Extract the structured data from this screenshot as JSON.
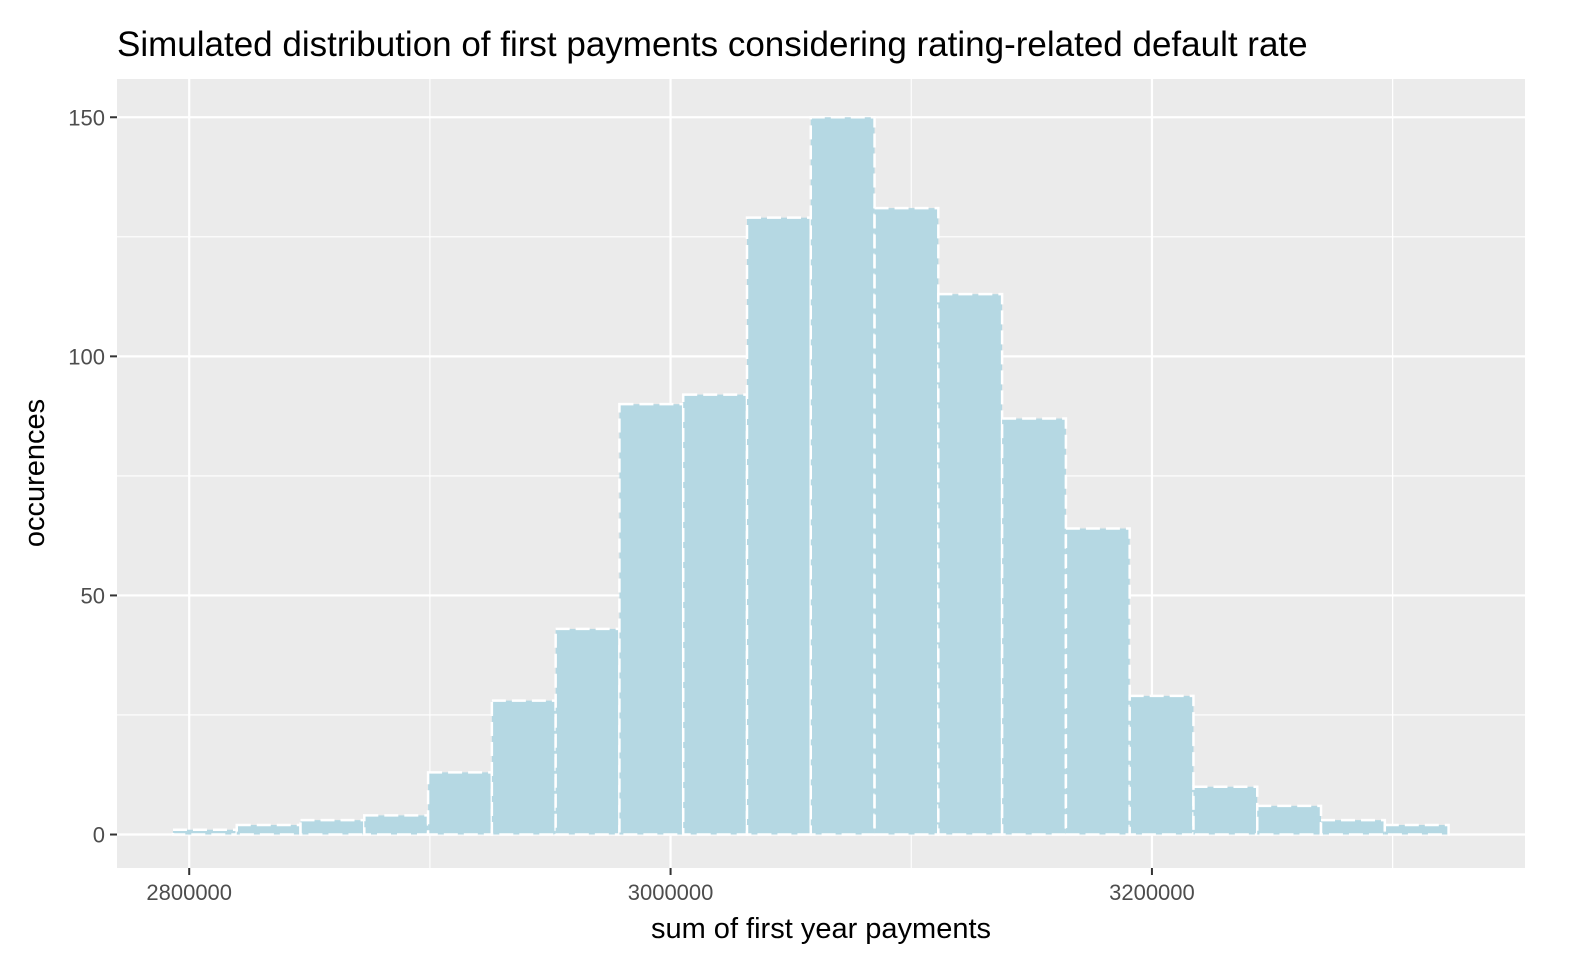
{
  "chart_data": {
    "type": "bar",
    "title": "Simulated distribution of first payments considering rating-related default rate",
    "xlabel": "sum of first year payments",
    "ylabel": "occurences",
    "xlim": [
      2770000,
      3355000
    ],
    "ylim": [
      -7,
      158
    ],
    "x_ticks": [
      2800000,
      3000000,
      3200000
    ],
    "x_tick_labels": [
      "2800000",
      "3000000",
      "3200000"
    ],
    "y_ticks": [
      0,
      50,
      100,
      150
    ],
    "y_tick_labels": [
      "0",
      "50",
      "100",
      "150"
    ],
    "bin_width": 26500,
    "bin_centers": [
      2806500,
      2833000,
      2859500,
      2886000,
      2912500,
      2939000,
      2965500,
      2992000,
      3018500,
      3045000,
      3071500,
      3098000,
      3124500,
      3151000,
      3177500,
      3204000,
      3230500,
      3257000,
      3283500,
      3310000,
      3336500
    ],
    "values": [
      1,
      2,
      3,
      4,
      13,
      28,
      43,
      90,
      92,
      129,
      150,
      131,
      113,
      87,
      64,
      29,
      10,
      6,
      3,
      2,
      0
    ],
    "colors": {
      "panel": "#ebebeb",
      "bar_fill": "#b5d8e3",
      "grid": "#ffffff"
    }
  }
}
